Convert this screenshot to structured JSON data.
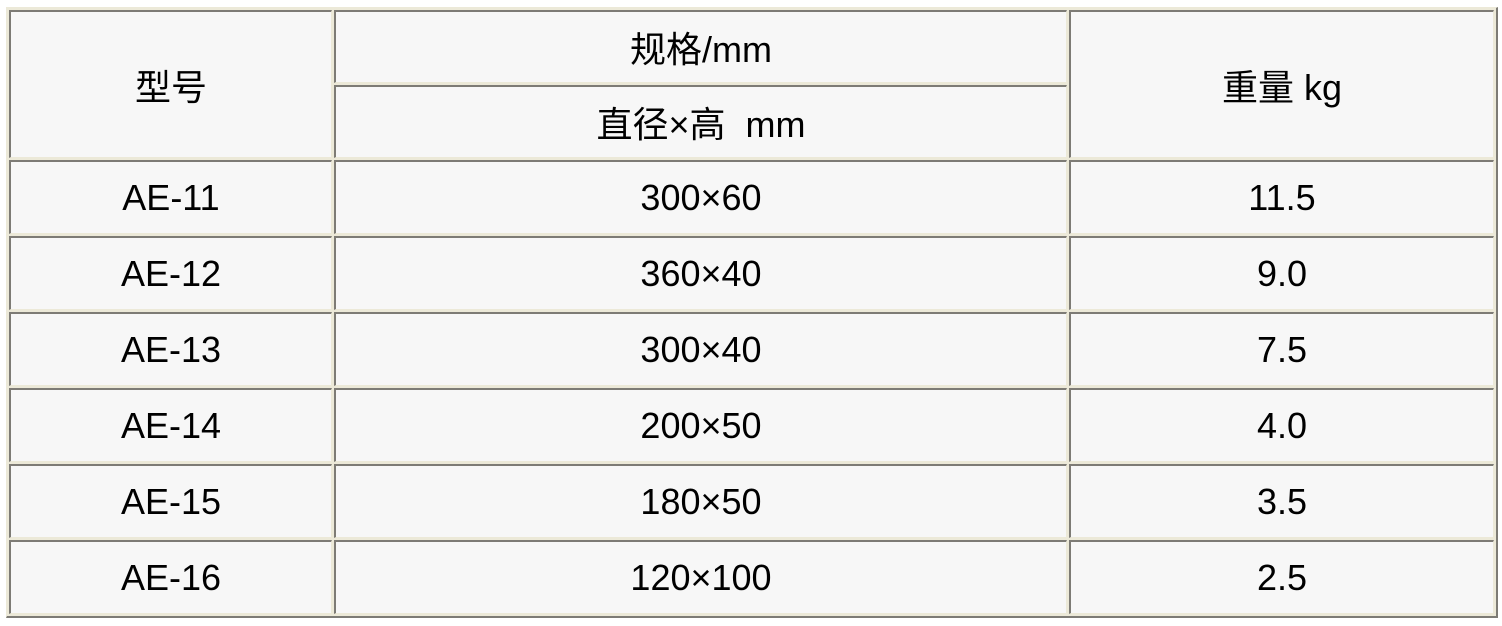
{
  "table": {
    "header": {
      "model": "型号",
      "spec": "规格/mm",
      "spec_sub": "直径×高  mm",
      "weight": "重量 kg"
    },
    "rows": [
      {
        "model": "AE-11",
        "size": "300×60",
        "weight": "11.5"
      },
      {
        "model": "AE-12",
        "size": "360×40",
        "weight": "9.0"
      },
      {
        "model": "AE-13",
        "size": "300×40",
        "weight": "7.5"
      },
      {
        "model": "AE-14",
        "size": "200×50",
        "weight": "4.0"
      },
      {
        "model": "AE-15",
        "size": "180×50",
        "weight": "3.5"
      },
      {
        "model": "AE-16",
        "size": "120×100",
        "weight": "2.5"
      }
    ]
  }
}
